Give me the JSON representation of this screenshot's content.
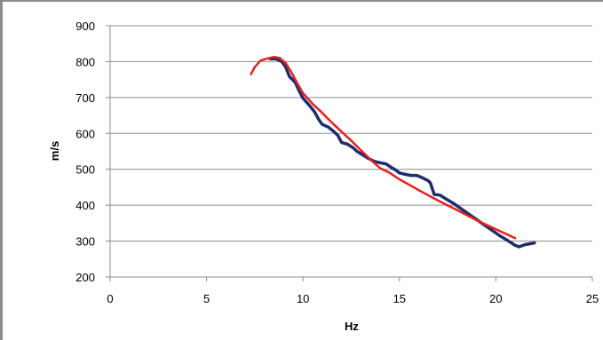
{
  "chart_data": {
    "type": "line",
    "title": "",
    "xlabel": "Hz",
    "ylabel": "m/s",
    "xlim": [
      0,
      25
    ],
    "ylim": [
      200,
      900
    ],
    "xticks": [
      0,
      5,
      10,
      15,
      20,
      25
    ],
    "yticks": [
      200,
      300,
      400,
      500,
      600,
      700,
      800,
      900
    ],
    "grid": "horizontal",
    "legend": "none",
    "series": [
      {
        "color": "#1f2d6e",
        "points": [
          [
            8.3,
            808
          ],
          [
            8.6,
            808
          ],
          [
            8.9,
            800
          ],
          [
            9.1,
            785
          ],
          [
            9.3,
            758
          ],
          [
            9.6,
            742
          ],
          [
            9.8,
            718
          ],
          [
            10.0,
            698
          ],
          [
            10.3,
            680
          ],
          [
            10.6,
            660
          ],
          [
            10.8,
            640
          ],
          [
            11.0,
            625
          ],
          [
            11.3,
            618
          ],
          [
            11.6,
            605
          ],
          [
            11.8,
            595
          ],
          [
            12.0,
            575
          ],
          [
            12.3,
            570
          ],
          [
            12.6,
            560
          ],
          [
            12.8,
            550
          ],
          [
            13.1,
            540
          ],
          [
            13.4,
            530
          ],
          [
            13.7,
            522
          ],
          [
            14.0,
            518
          ],
          [
            14.3,
            515
          ],
          [
            14.5,
            508
          ],
          [
            14.8,
            498
          ],
          [
            15.0,
            490
          ],
          [
            15.3,
            486
          ],
          [
            15.6,
            483
          ],
          [
            15.9,
            483
          ],
          [
            16.2,
            476
          ],
          [
            16.5,
            468
          ],
          [
            16.6,
            462
          ],
          [
            16.8,
            430
          ],
          [
            17.1,
            428
          ],
          [
            17.4,
            418
          ],
          [
            17.8,
            405
          ],
          [
            18.2,
            390
          ],
          [
            18.6,
            375
          ],
          [
            19.0,
            360
          ],
          [
            19.4,
            345
          ],
          [
            19.8,
            330
          ],
          [
            20.2,
            315
          ],
          [
            20.6,
            302
          ],
          [
            21.0,
            288
          ],
          [
            21.2,
            284
          ],
          [
            21.5,
            290
          ],
          [
            22.0,
            295
          ]
        ]
      },
      {
        "color": "#e8201c",
        "points": [
          [
            7.3,
            765
          ],
          [
            7.5,
            785
          ],
          [
            7.8,
            803
          ],
          [
            8.1,
            808
          ],
          [
            8.5,
            813
          ],
          [
            8.8,
            810
          ],
          [
            9.1,
            796
          ],
          [
            9.4,
            770
          ],
          [
            9.7,
            740
          ],
          [
            10.0,
            712
          ],
          [
            10.5,
            682
          ],
          [
            11.0,
            657
          ],
          [
            11.5,
            630
          ],
          [
            12.0,
            605
          ],
          [
            12.5,
            580
          ],
          [
            13.0,
            553
          ],
          [
            13.5,
            527
          ],
          [
            14.0,
            503
          ],
          [
            14.5,
            490
          ],
          [
            15.0,
            472
          ],
          [
            16.0,
            442
          ],
          [
            17.0,
            413
          ],
          [
            18.0,
            386
          ],
          [
            19.0,
            358
          ],
          [
            20.0,
            333
          ],
          [
            21.0,
            308
          ]
        ]
      }
    ]
  }
}
